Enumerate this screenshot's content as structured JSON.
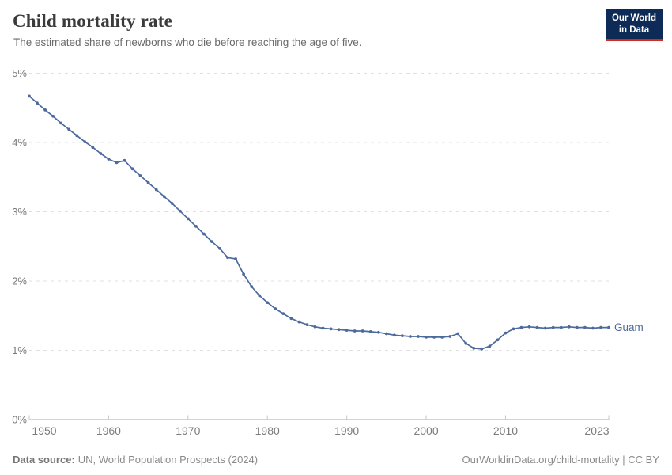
{
  "header": {
    "title": "Child mortality rate",
    "subtitle": "The estimated share of newborns who die before reaching the age of five.",
    "logo_line1": "Our World",
    "logo_line2": "in Data"
  },
  "footer": {
    "source_label": "Data source:",
    "source_text": "UN, World Population Prospects (2024)",
    "attribution": "OurWorldinData.org/child-mortality | CC BY"
  },
  "chart_data": {
    "type": "line",
    "title": "Child mortality rate",
    "subtitle": "The estimated share of newborns who die before reaching the age of five.",
    "unit": "%",
    "xlabel": "",
    "ylabel": "",
    "xlim": [
      1950,
      2023
    ],
    "ylim": [
      0,
      5
    ],
    "x_ticks": [
      1950,
      1960,
      1970,
      1980,
      1990,
      2000,
      2010,
      2023
    ],
    "y_ticks": [
      {
        "value": 0,
        "label": "0%"
      },
      {
        "value": 1,
        "label": "1%"
      },
      {
        "value": 2,
        "label": "2%"
      },
      {
        "value": 3,
        "label": "3%"
      },
      {
        "value": 4,
        "label": "4%"
      },
      {
        "value": 5,
        "label": "5%"
      }
    ],
    "grid": "horizontal dashed gridlines, legend as end-of-line label",
    "colors": {
      "line": "#4C6A9C",
      "grid": "#e0e0e0",
      "axis": "#a8a8a8",
      "tick": "#c8c8c8",
      "axis_label": "#7b7b7b"
    },
    "series": [
      {
        "name": "Guam",
        "years": [
          1950,
          1951,
          1952,
          1953,
          1954,
          1955,
          1956,
          1957,
          1958,
          1959,
          1960,
          1961,
          1962,
          1963,
          1964,
          1965,
          1966,
          1967,
          1968,
          1969,
          1970,
          1971,
          1972,
          1973,
          1974,
          1975,
          1976,
          1977,
          1978,
          1979,
          1980,
          1981,
          1982,
          1983,
          1984,
          1985,
          1986,
          1987,
          1988,
          1989,
          1990,
          1991,
          1992,
          1993,
          1994,
          1995,
          1996,
          1997,
          1998,
          1999,
          2000,
          2001,
          2002,
          2003,
          2004,
          2005,
          2006,
          2007,
          2008,
          2009,
          2010,
          2011,
          2012,
          2013,
          2014,
          2015,
          2016,
          2017,
          2018,
          2019,
          2020,
          2021,
          2022,
          2023
        ],
        "values": [
          4.67,
          4.57,
          4.47,
          4.38,
          4.28,
          4.19,
          4.1,
          4.01,
          3.93,
          3.84,
          3.76,
          3.71,
          3.74,
          3.62,
          3.52,
          3.42,
          3.32,
          3.22,
          3.12,
          3.01,
          2.9,
          2.79,
          2.68,
          2.57,
          2.47,
          2.34,
          2.32,
          2.1,
          1.92,
          1.79,
          1.69,
          1.6,
          1.53,
          1.46,
          1.41,
          1.37,
          1.34,
          1.32,
          1.31,
          1.3,
          1.29,
          1.28,
          1.28,
          1.27,
          1.26,
          1.24,
          1.22,
          1.21,
          1.2,
          1.2,
          1.19,
          1.19,
          1.19,
          1.2,
          1.24,
          1.1,
          1.03,
          1.02,
          1.06,
          1.15,
          1.25,
          1.31,
          1.33,
          1.34,
          1.33,
          1.32,
          1.33,
          1.33,
          1.34,
          1.33,
          1.33,
          1.32,
          1.33,
          1.33
        ]
      }
    ]
  }
}
